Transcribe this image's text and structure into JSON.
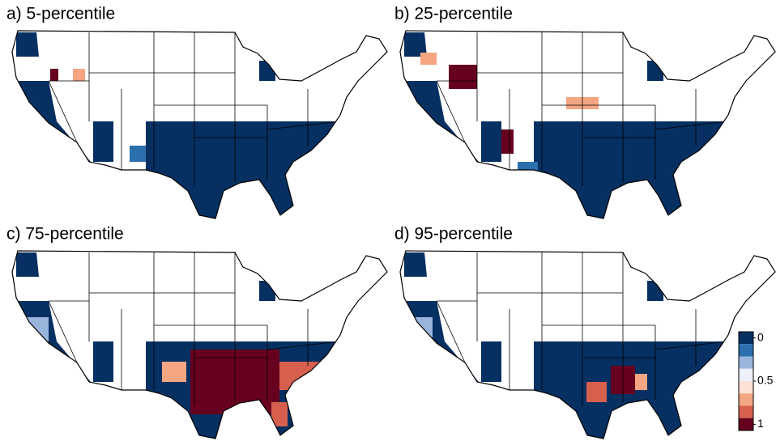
{
  "panels": [
    {
      "title": "a) 5-percentile"
    },
    {
      "title": "b) 25-percentile"
    },
    {
      "title": "c) 75-percentile"
    },
    {
      "title": "d) 95-percentile"
    }
  ],
  "colorbar": {
    "colors": [
      "#053061",
      "#2c6fad",
      "#9ab5dc",
      "#eef0f8",
      "#fbe1d6",
      "#f4a582",
      "#d6604d",
      "#67001f"
    ],
    "range": [
      0,
      1
    ],
    "ticks": [
      0,
      0.5,
      1
    ]
  }
}
